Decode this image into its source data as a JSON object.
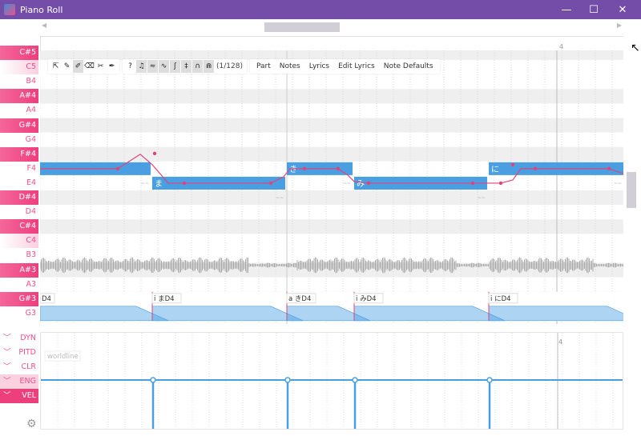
{
  "window": {
    "title": "Piano Roll",
    "minimize": "—",
    "maximize": "☐",
    "close": "✕"
  },
  "ruler": {
    "bar_label": "4"
  },
  "keys": [
    "C#5",
    "C5",
    "B4",
    "A#4",
    "A4",
    "G#4",
    "G4",
    "F#4",
    "F4",
    "E4",
    "D#4",
    "D4",
    "C#4",
    "C4",
    "B3",
    "A#3",
    "A3",
    "G#3",
    "G3"
  ],
  "toolbar": {
    "tools": [
      {
        "icon": "pointer-icon",
        "glyph": "⇱"
      },
      {
        "icon": "pencil-icon",
        "glyph": "✎"
      },
      {
        "icon": "magic-pencil-icon",
        "glyph": "✐",
        "selected": true
      },
      {
        "icon": "eraser-icon",
        "glyph": "⌫"
      },
      {
        "icon": "knife-icon",
        "glyph": "✂"
      },
      {
        "icon": "pen-icon",
        "glyph": "✒"
      }
    ],
    "toggles": [
      {
        "icon": "help-icon",
        "glyph": "?"
      },
      {
        "icon": "note-icon",
        "glyph": "♫",
        "selected": true
      },
      {
        "icon": "pitch-icon",
        "glyph": "≈",
        "selected": true
      },
      {
        "icon": "curve-icon",
        "glyph": "∿",
        "selected": true
      },
      {
        "icon": "vibrato-icon",
        "glyph": "ʃ",
        "selected": true
      },
      {
        "icon": "phoneme-icon",
        "glyph": "‡",
        "selected": true
      },
      {
        "icon": "envelope-icon",
        "glyph": "∩",
        "selected": true
      },
      {
        "icon": "snap-icon",
        "glyph": "⋒",
        "selected": true
      }
    ],
    "snap": "(1/128)",
    "menus": [
      "Part",
      "Notes",
      "Lyrics",
      "Edit Lyrics",
      "Note Defaults"
    ]
  },
  "notes": [
    {
      "lyric": "",
      "tone": "F4",
      "start": 0,
      "end": 138
    },
    {
      "lyric": "ま",
      "tone": "E4",
      "start": 140,
      "end": 306
    },
    {
      "lyric": "き",
      "tone": "F4",
      "start": 308,
      "end": 390
    },
    {
      "lyric": "み",
      "tone": "E4",
      "start": 392,
      "end": 558
    },
    {
      "lyric": "に",
      "tone": "F4",
      "start": 560,
      "end": 728
    }
  ],
  "phonemes": [
    "D4",
    "i まD4",
    "a きD4",
    "i みD4",
    "i にD4"
  ],
  "expressions": [
    {
      "name": "DYN"
    },
    {
      "name": "PITD"
    },
    {
      "name": "CLR"
    },
    {
      "name": "ENG",
      "active": true
    },
    {
      "name": "VEL",
      "selected": true
    }
  ],
  "exp_panel": {
    "hint": "worldline"
  },
  "colors": {
    "titlebar": "#744da9",
    "accent": "#f0508a",
    "note": "#4a9fe3",
    "pitch": "#e0457a"
  }
}
